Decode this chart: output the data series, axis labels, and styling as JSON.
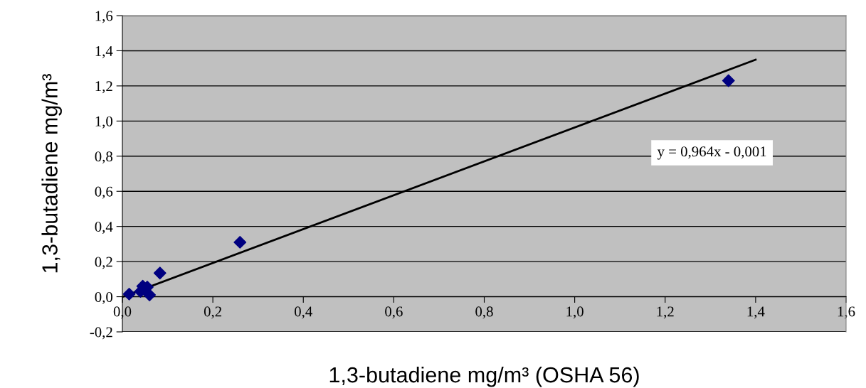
{
  "chart_data": {
    "type": "scatter",
    "xlabel": "1,3-butadiene mg/m³ (OSHA 56)",
    "ylabel": "1,3-butadiene mg/m³",
    "annotations": [
      "y = 0,964x - 0,001"
    ],
    "xlim": [
      0,
      1.6
    ],
    "ylim": [
      -0.2,
      1.6
    ],
    "xticks": [
      {
        "value": 0,
        "label": "0,0"
      },
      {
        "value": 0.2,
        "label": "0,2"
      },
      {
        "value": 0.4,
        "label": "0,4"
      },
      {
        "value": 0.6,
        "label": "0,6"
      },
      {
        "value": 0.8,
        "label": "0,8"
      },
      {
        "value": 1.0,
        "label": "1,0"
      },
      {
        "value": 1.2,
        "label": "1,2"
      },
      {
        "value": 1.4,
        "label": "1,4"
      },
      {
        "value": 1.6,
        "label": "1,6"
      }
    ],
    "yticks": [
      {
        "value": -0.2,
        "label": "-0,2"
      },
      {
        "value": 0,
        "label": "0,0"
      },
      {
        "value": 0.2,
        "label": "0,2"
      },
      {
        "value": 0.4,
        "label": "0,4"
      },
      {
        "value": 0.6,
        "label": "0,6"
      },
      {
        "value": 0.8,
        "label": "0,8"
      },
      {
        "value": 1.0,
        "label": "1,0"
      },
      {
        "value": 1.2,
        "label": "1,2"
      },
      {
        "value": 1.4,
        "label": "1,4"
      },
      {
        "value": 1.6,
        "label": "1,6"
      }
    ],
    "grid": "y",
    "legend": false,
    "series": [
      {
        "color": "#000080",
        "marker": "diamond",
        "x": [
          0.015,
          0.04,
          0.045,
          0.055,
          0.06,
          0.083,
          0.26,
          1.34
        ],
        "values": [
          0.015,
          0.03,
          0.06,
          0.055,
          0.01,
          0.135,
          0.31,
          1.23
        ]
      },
      {
        "type": "line",
        "color": "#000000",
        "marker": "none",
        "x": [
          0,
          1.4
        ],
        "values": [
          -0.001,
          1.349
        ]
      }
    ]
  }
}
